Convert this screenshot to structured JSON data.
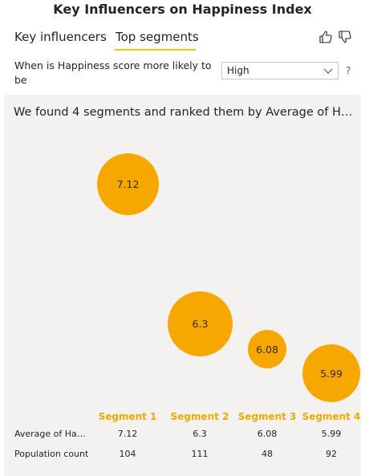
{
  "title": "Key Influencers on Happiness Index",
  "tabs": [
    {
      "label": "Key influencers",
      "active": false
    },
    {
      "label": "Top segments",
      "active": true
    }
  ],
  "feedback": {
    "thumbs_up_icon": "thumbs-up-icon",
    "thumbs_down_icon": "thumbs-down-icon"
  },
  "question": {
    "text": "When is Happiness score more likely to be",
    "dropdown_value": "High",
    "help": "?"
  },
  "panel": {
    "heading": "We found 4 segments and ranked them by Average of Ha..."
  },
  "segments": [
    {
      "label": "Segment 1",
      "average": "7.12",
      "population": "104"
    },
    {
      "label": "Segment 2",
      "average": "6.3",
      "population": "111"
    },
    {
      "label": "Segment 3",
      "average": "6.08",
      "population": "48"
    },
    {
      "label": "Segment 4",
      "average": "5.99",
      "population": "92"
    }
  ],
  "table": {
    "row_labels": [
      "Average of Hap...",
      "Population count"
    ]
  },
  "colors": {
    "bubble": "#f7a800",
    "segment_label": "#f2a800",
    "tab_underline": "#f2c811",
    "panel_bg": "#f3f2f1"
  }
}
